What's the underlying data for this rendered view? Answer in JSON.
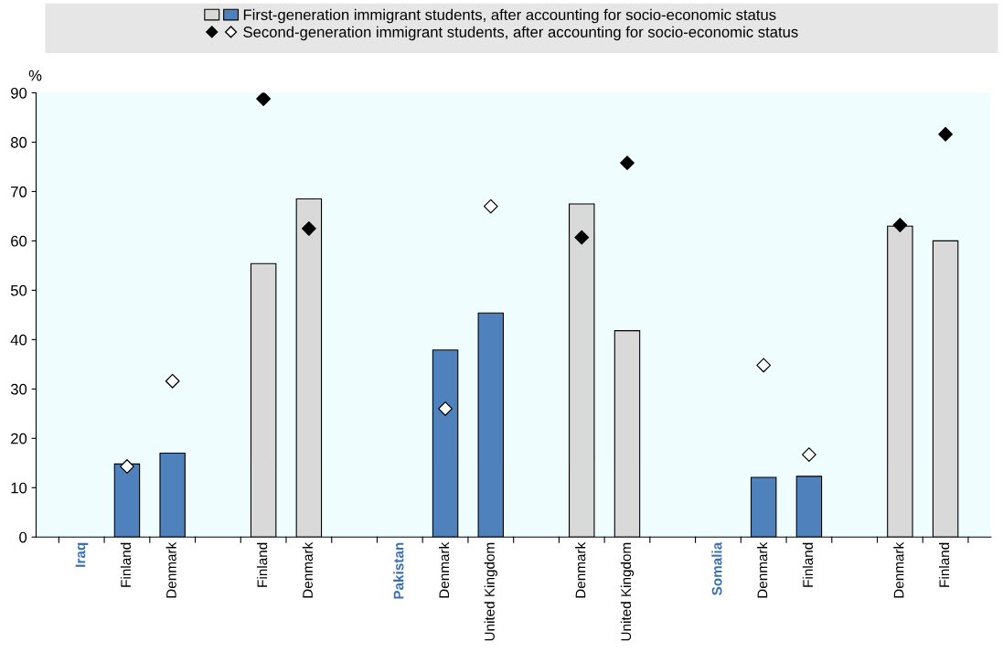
{
  "chart_data": {
    "type": "bar",
    "ylabel": "%",
    "categories": [
      "Iraq",
      "Finland",
      "Denmark",
      null,
      "Finland",
      "Denmark",
      null,
      "Pakistan",
      "Denmark",
      "United Kingdom",
      null,
      "Denmark",
      "United Kingdom",
      null,
      "Somalia",
      "Denmark",
      "Finland",
      null,
      "Denmark",
      "Finland"
    ],
    "series": [
      {
        "name": "First-generation immigrant students, after accounting for socio-economic status",
        "colors": [
          null,
          "#4f81bd",
          "#4f81bd",
          null,
          "#d9d9d9",
          "#d9d9d9",
          null,
          null,
          "#4f81bd",
          "#4f81bd",
          null,
          "#d9d9d9",
          "#d9d9d9",
          null,
          null,
          "#4f81bd",
          "#4f81bd",
          null,
          "#d9d9d9",
          "#d9d9d9"
        ],
        "values": [
          null,
          14.8,
          17,
          null,
          55.4,
          68.5,
          null,
          null,
          37.9,
          45.4,
          null,
          67.5,
          41.8,
          null,
          null,
          12.1,
          12.3,
          null,
          63,
          60
        ]
      },
      {
        "name": "Second-generation immigrant students, after accounting for socio-economic status",
        "type": "scatter",
        "marker": "diamond",
        "colors": [
          null,
          "#ffffff",
          "#ffffff",
          null,
          "#000000",
          "#000000",
          null,
          null,
          "#ffffff",
          "#ffffff",
          null,
          "#000000",
          "#000000",
          null,
          null,
          "#ffffff",
          "#ffffff",
          null,
          "#000000",
          "#000000"
        ],
        "values": [
          null,
          14.3,
          31.6,
          null,
          88.8,
          62.5,
          null,
          null,
          26,
          67,
          null,
          60.7,
          75.8,
          null,
          null,
          34.8,
          16.7,
          null,
          63.2,
          81.6
        ]
      }
    ],
    "ylim": [
      0,
      90
    ],
    "yticks": [
      0,
      10,
      20,
      30,
      40,
      50,
      60,
      70,
      80,
      90
    ],
    "grid": false,
    "legend": "top"
  }
}
